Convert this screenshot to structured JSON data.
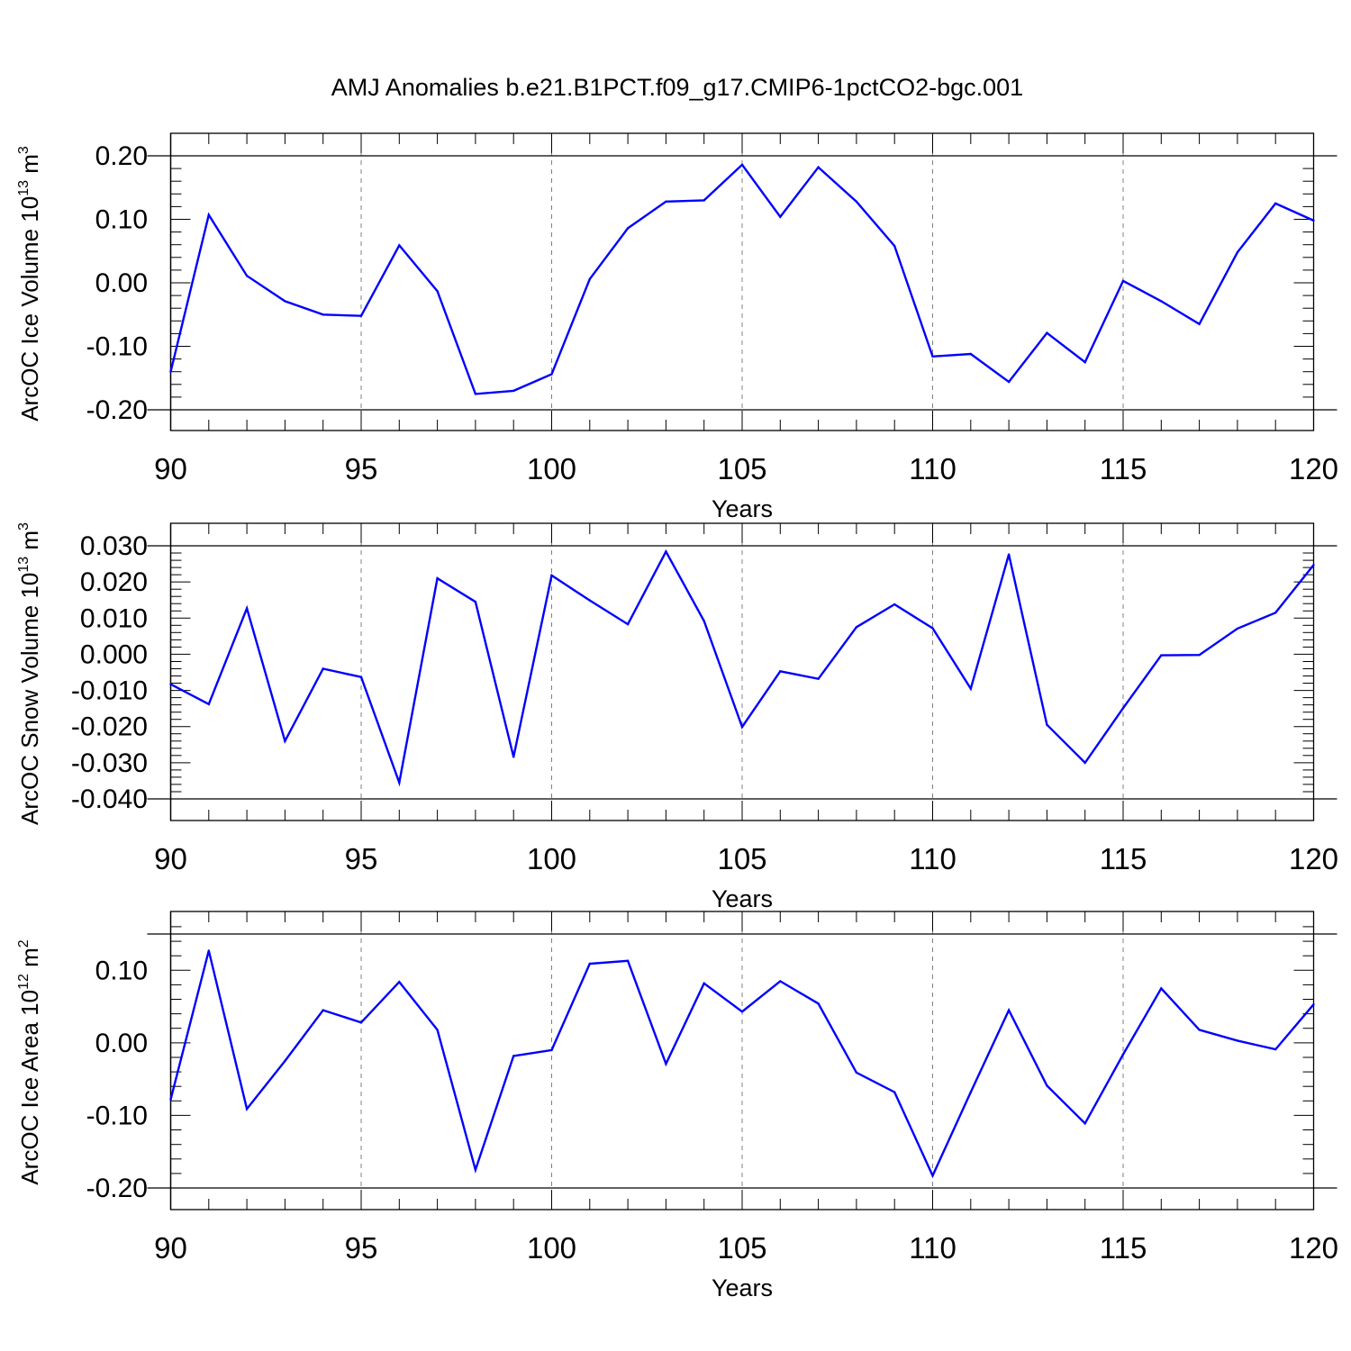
{
  "title": "AMJ Anomalies b.e21.B1PCT.f09_g17.CMIP6-1pctCO2-bgc.001",
  "colors": {
    "series": "#0000ff",
    "axis": "#000000",
    "grid": "#808080",
    "background": "#ffffff"
  },
  "chart_data": [
    {
      "type": "line",
      "ylabel": {
        "main": "ArcOC Ice Volume 10",
        "exp": "13",
        "unit": " m",
        "unit_exp": "3"
      },
      "xlabel": "Years",
      "xlim": [
        90,
        120
      ],
      "ylim": [
        -0.2,
        0.2
      ],
      "grid": "vertical-dashed",
      "xticks": [
        "90",
        "95",
        "100",
        "105",
        "110",
        "115",
        "120"
      ],
      "yticks": [
        "0.20",
        "0.10",
        "0.00",
        "-0.10",
        "-0.20"
      ],
      "x": [
        90,
        91,
        92,
        93,
        94,
        95,
        96,
        97,
        98,
        99,
        100,
        101,
        102,
        103,
        104,
        105,
        106,
        107,
        108,
        109,
        110,
        111,
        112,
        113,
        114,
        115,
        116,
        117,
        118,
        119,
        120
      ],
      "y": [
        -0.14,
        0.107,
        0.011,
        -0.029,
        -0.05,
        -0.052,
        0.059,
        -0.013,
        -0.175,
        -0.17,
        -0.144,
        0.006,
        0.086,
        0.128,
        0.13,
        0.186,
        0.104,
        0.182,
        0.128,
        0.058,
        -0.116,
        -0.112,
        -0.156,
        -0.079,
        -0.125,
        0.003,
        -0.029,
        -0.065,
        0.048,
        0.125,
        0.098
      ]
    },
    {
      "type": "line",
      "ylabel": {
        "main": "ArcOC Snow Volume 10",
        "exp": "13",
        "unit": " m",
        "unit_exp": "3"
      },
      "xlabel": "Years",
      "xlim": [
        90,
        120
      ],
      "ylim": [
        -0.04,
        0.03
      ],
      "grid": "vertical-dashed",
      "xticks": [
        "90",
        "95",
        "100",
        "105",
        "110",
        "115",
        "120"
      ],
      "yticks": [
        "0.030",
        "0.020",
        "0.010",
        "0.000",
        "-0.010",
        "-0.020",
        "-0.030",
        "-0.040"
      ],
      "x": [
        90,
        91,
        92,
        93,
        94,
        95,
        96,
        97,
        98,
        99,
        100,
        101,
        102,
        103,
        104,
        105,
        106,
        107,
        108,
        109,
        110,
        111,
        112,
        113,
        114,
        115,
        116,
        117,
        118,
        119,
        120
      ],
      "y": [
        -0.0083,
        -0.0138,
        0.0127,
        -0.024,
        -0.004,
        -0.0063,
        -0.0355,
        0.021,
        0.0145,
        -0.0284,
        0.0218,
        0.0149,
        0.0083,
        0.0284,
        0.0092,
        -0.0201,
        -0.0047,
        -0.0068,
        0.0075,
        0.0138,
        0.0072,
        -0.0095,
        0.0276,
        -0.0195,
        -0.03,
        -0.0149,
        -0.0003,
        -0.0002,
        0.0071,
        0.0115,
        0.0247
      ]
    },
    {
      "type": "line",
      "ylabel": {
        "main": "ArcOC Ice Area 10",
        "exp": "12",
        "unit": " m",
        "unit_exp": "2"
      },
      "xlabel": "Years",
      "xlim": [
        90,
        120
      ],
      "ylim": [
        -0.2,
        0.15
      ],
      "grid": "vertical-dashed",
      "xticks": [
        "90",
        "95",
        "100",
        "105",
        "110",
        "115",
        "120"
      ],
      "yticks": [
        "0.10",
        "0.00",
        "-0.10",
        "-0.20"
      ],
      "x": [
        90,
        91,
        92,
        93,
        94,
        95,
        96,
        97,
        98,
        99,
        100,
        101,
        102,
        103,
        104,
        105,
        106,
        107,
        108,
        109,
        110,
        111,
        112,
        113,
        114,
        115,
        116,
        117,
        118,
        119,
        120
      ],
      "y": [
        -0.078,
        0.127,
        -0.091,
        -0.025,
        0.045,
        0.028,
        0.084,
        0.018,
        -0.175,
        -0.018,
        -0.01,
        0.109,
        0.113,
        -0.029,
        0.082,
        0.043,
        0.085,
        0.054,
        -0.041,
        -0.068,
        -0.183,
        -0.068,
        0.045,
        -0.059,
        -0.111,
        -0.016,
        0.075,
        0.018,
        0.003,
        -0.009,
        0.053
      ]
    }
  ]
}
